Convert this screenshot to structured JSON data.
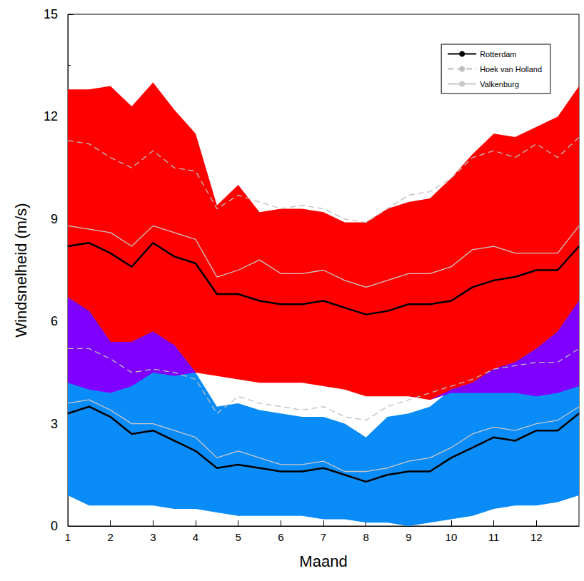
{
  "chart_data": {
    "type": "band_line",
    "x_label": "Maand",
    "y_label": "Windsnelheid (m/s)",
    "x": [
      1,
      1.5,
      2,
      2.5,
      3,
      3.5,
      4,
      4.5,
      5,
      5.5,
      6,
      6.5,
      7,
      7.5,
      8,
      8.5,
      9,
      9.5,
      10,
      10.5,
      11,
      11.5,
      12,
      12.5,
      13
    ],
    "xlim": [
      1,
      13
    ],
    "xticks": [
      1,
      2,
      3,
      4,
      5,
      6,
      7,
      8,
      9,
      10,
      11,
      12
    ],
    "ylim": [
      0,
      15
    ],
    "yticks": [
      0,
      3,
      6,
      9,
      12,
      15
    ],
    "grid": false,
    "legend": "top-right",
    "colors": [
      "#ff0000",
      "#0a8cf8",
      "#8000ff"
    ],
    "bands": [
      {
        "lower": [
          4.2,
          4.0,
          3.9,
          4.1,
          4.5,
          4.4,
          4.5,
          4.4,
          4.3,
          4.2,
          4.2,
          4.2,
          4.1,
          4.0,
          3.8,
          3.8,
          3.8,
          3.7,
          3.9,
          3.9,
          3.9,
          3.9,
          3.8,
          3.9,
          4.1
        ],
        "upper": [
          12.8,
          12.8,
          12.9,
          12.3,
          13.0,
          12.2,
          11.5,
          9.4,
          10.0,
          9.2,
          9.3,
          9.3,
          9.2,
          8.9,
          8.9,
          9.3,
          9.5,
          9.6,
          10.2,
          10.9,
          11.5,
          11.4,
          11.7,
          12.0,
          12.9
        ]
      },
      {
        "lower": [
          0.9,
          0.6,
          0.6,
          0.6,
          0.6,
          0.5,
          0.5,
          0.4,
          0.3,
          0.3,
          0.3,
          0.3,
          0.2,
          0.2,
          0.1,
          0.1,
          0.0,
          0.1,
          0.2,
          0.3,
          0.5,
          0.6,
          0.6,
          0.7,
          0.9
        ],
        "upper": [
          6.7,
          6.3,
          5.4,
          5.4,
          5.7,
          5.3,
          4.5,
          3.5,
          3.6,
          3.4,
          3.3,
          3.2,
          3.2,
          3.0,
          2.6,
          3.2,
          3.3,
          3.5,
          4.0,
          4.2,
          4.6,
          4.8,
          5.2,
          5.7,
          6.6
        ]
      }
    ],
    "series": [
      {
        "name": "Rotterdam",
        "color": "#000000",
        "line_style": "solid",
        "values": [
          8.2,
          8.3,
          8.0,
          7.6,
          8.3,
          7.9,
          7.7,
          6.8,
          6.8,
          6.6,
          6.5,
          6.5,
          6.6,
          6.4,
          6.2,
          6.3,
          6.5,
          6.5,
          6.6,
          7.0,
          7.2,
          7.3,
          7.5,
          7.5,
          8.2
        ]
      },
      {
        "name": "Rotterdam",
        "color": "#000000",
        "line_style": "solid",
        "values": [
          3.3,
          3.5,
          3.2,
          2.7,
          2.8,
          2.5,
          2.2,
          1.7,
          1.8,
          1.7,
          1.6,
          1.6,
          1.7,
          1.5,
          1.3,
          1.5,
          1.6,
          1.6,
          2.0,
          2.3,
          2.6,
          2.5,
          2.8,
          2.8,
          3.3
        ]
      },
      {
        "name": "Hoek van Holland",
        "color": "#bdbdbd",
        "line_style": "dashed",
        "values": [
          11.3,
          11.2,
          10.8,
          10.5,
          11.0,
          10.5,
          10.4,
          9.3,
          9.7,
          9.5,
          9.3,
          9.4,
          9.3,
          9.0,
          8.9,
          9.3,
          9.7,
          9.8,
          10.2,
          10.8,
          11.0,
          10.8,
          11.2,
          10.8,
          11.4
        ]
      },
      {
        "name": "Hoek van Holland",
        "color": "#bdbdbd",
        "line_style": "dashed",
        "values": [
          5.2,
          5.2,
          4.9,
          4.5,
          4.6,
          4.5,
          4.3,
          3.3,
          3.8,
          3.6,
          3.5,
          3.4,
          3.5,
          3.2,
          3.1,
          3.5,
          3.7,
          3.9,
          4.1,
          4.3,
          4.6,
          4.7,
          4.8,
          4.8,
          5.2
        ]
      },
      {
        "name": "Valkenburg",
        "color": "#c8c8c8",
        "line_style": "solid",
        "values": [
          8.8,
          8.7,
          8.6,
          8.2,
          8.8,
          8.6,
          8.4,
          7.3,
          7.5,
          7.8,
          7.4,
          7.4,
          7.5,
          7.2,
          7.0,
          7.2,
          7.4,
          7.4,
          7.6,
          8.1,
          8.2,
          8.0,
          8.0,
          8.0,
          8.8
        ]
      },
      {
        "name": "Valkenburg",
        "color": "#c8c8c8",
        "line_style": "solid",
        "values": [
          3.6,
          3.7,
          3.4,
          3.0,
          3.0,
          2.8,
          2.6,
          2.0,
          2.2,
          2.0,
          1.8,
          1.8,
          1.9,
          1.6,
          1.6,
          1.7,
          1.9,
          2.0,
          2.3,
          2.7,
          2.9,
          2.8,
          3.0,
          3.1,
          3.5
        ]
      }
    ]
  }
}
